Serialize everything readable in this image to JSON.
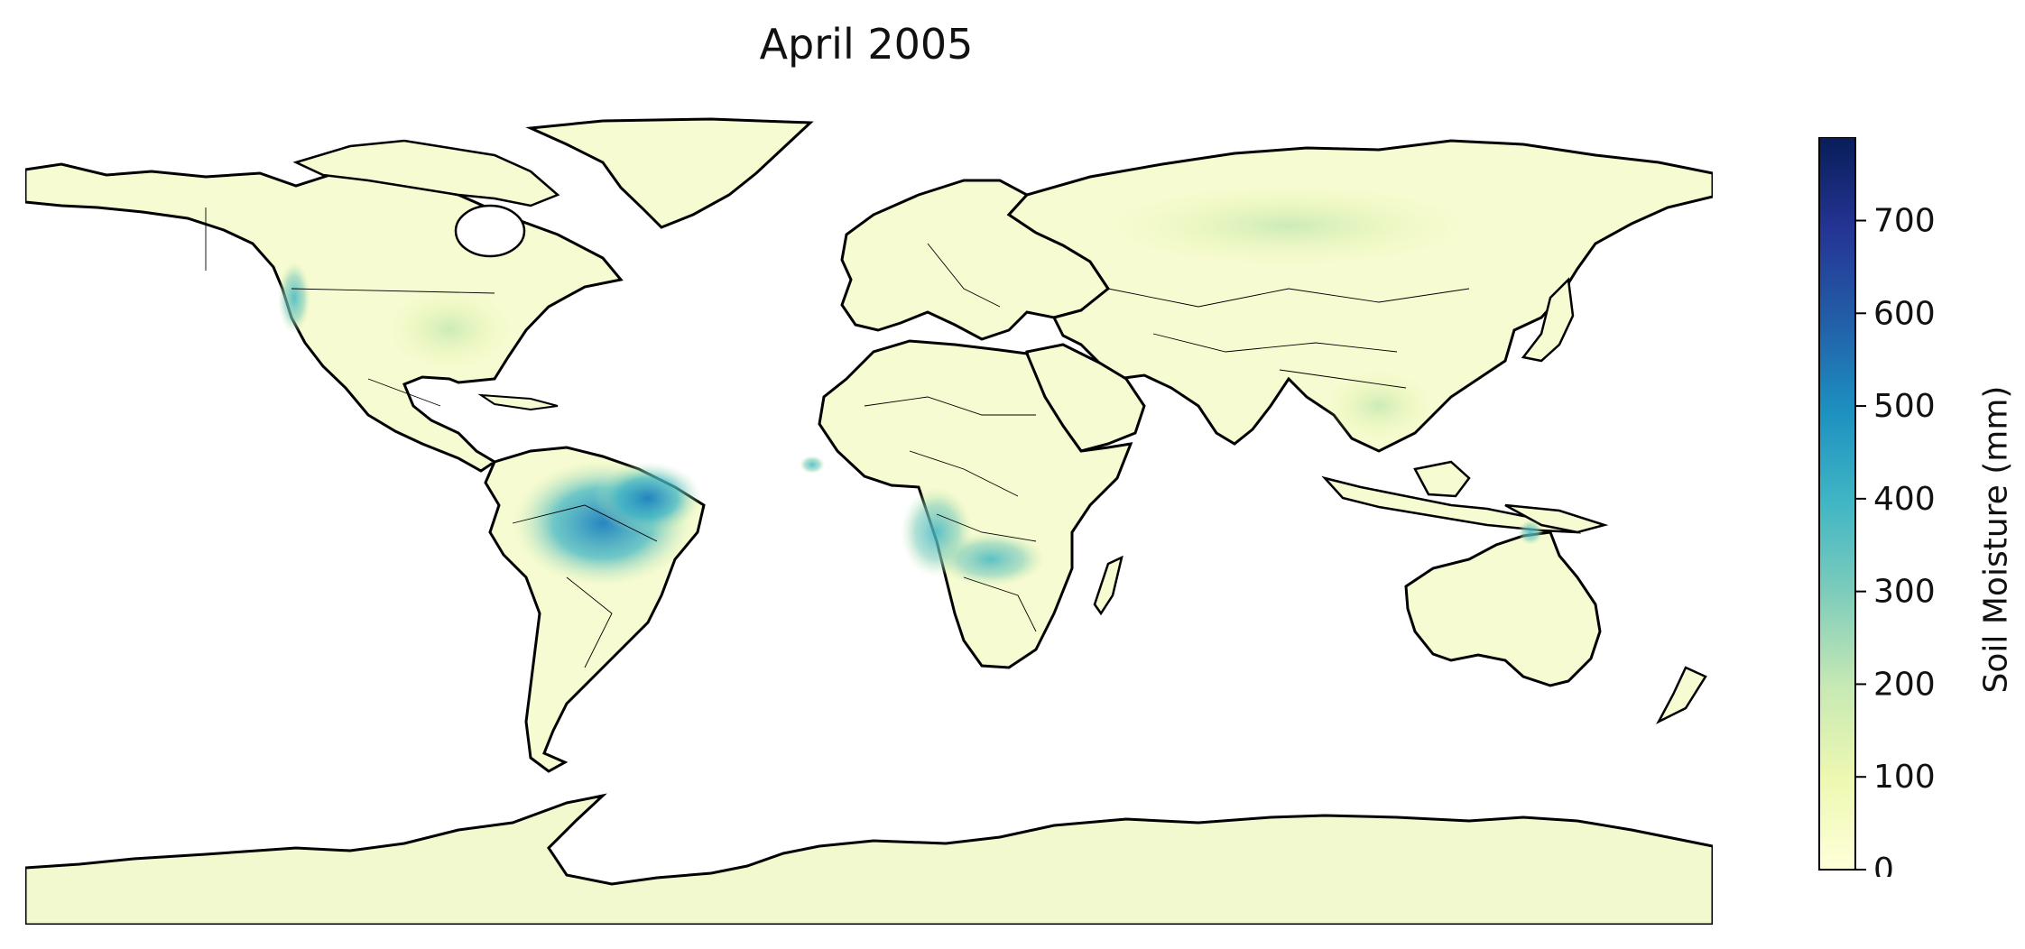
{
  "title": "April 2005",
  "colorbar": {
    "label": "Soil Moisture (mm)",
    "ticks": [
      "0",
      "100",
      "200",
      "300",
      "400",
      "500",
      "600",
      "700"
    ],
    "max": 790,
    "colors": [
      "#ffffd9",
      "#edf8b1",
      "#c7e9b4",
      "#7fcdbb",
      "#41b6c4",
      "#1d91c0",
      "#225ea8",
      "#253494",
      "#081d58"
    ]
  },
  "map": {
    "projection": "plate carree",
    "ocean_color": "#ffffff",
    "land_base_color": "#f7fbd1",
    "coastline_color": "#000000",
    "high_moisture_regions": [
      {
        "region": "Amazon basin",
        "level_mm": 520
      },
      {
        "region": "Northern Brazil coast",
        "level_mm": 560
      },
      {
        "region": "Congo / Angola",
        "level_mm": 380
      },
      {
        "region": "Zambia / Tanzania",
        "level_mm": 350
      },
      {
        "region": "Pacific Northwest",
        "level_mm": 330
      },
      {
        "region": "Guinea coast",
        "level_mm": 400
      },
      {
        "region": "Northern Australia",
        "level_mm": 300
      }
    ]
  }
}
